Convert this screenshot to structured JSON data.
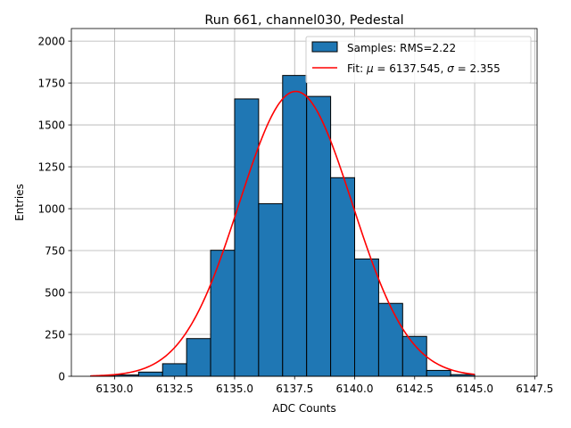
{
  "chart_data": {
    "type": "bar",
    "title": "Run 661, channel030, Pedestal",
    "xlabel": "ADC Counts",
    "ylabel": "Entries",
    "xlim": [
      6128.2,
      6147.6
    ],
    "ylim": [
      0,
      2075
    ],
    "grid": true,
    "legend_position": "top-right",
    "x_ticks": [
      6130.0,
      6132.5,
      6135.0,
      6137.5,
      6140.0,
      6142.5,
      6145.0,
      6147.5
    ],
    "x_tick_labels": [
      "6130.0",
      "6132.5",
      "6135.0",
      "6137.5",
      "6140.0",
      "6142.5",
      "6145.0",
      "6147.5"
    ],
    "y_ticks": [
      0,
      250,
      500,
      750,
      1000,
      1250,
      1500,
      1750,
      2000
    ],
    "y_tick_labels": [
      "0",
      "250",
      "500",
      "750",
      "1000",
      "1250",
      "1500",
      "1750",
      "2000"
    ],
    "series": [
      {
        "name": "Samples: RMS=2.22",
        "kind": "histogram",
        "color": "#1f77b4",
        "edgecolor": "#000000",
        "bin_edges": [
          6129,
          6130,
          6131,
          6132,
          6133,
          6134,
          6135,
          6136,
          6137,
          6138,
          6139,
          6140,
          6141,
          6142,
          6143,
          6144,
          6145,
          6146
        ],
        "values": [
          2,
          8,
          25,
          75,
          225,
          752,
          1655,
          1030,
          1795,
          1670,
          1185,
          700,
          435,
          238,
          35,
          10,
          0
        ]
      },
      {
        "name": "Fit: μ = 6137.545, σ = 2.355",
        "kind": "gaussian",
        "color": "#ff0000",
        "mu": 6137.545,
        "sigma": 2.355,
        "amplitude": 1700,
        "x_range": [
          6129,
          6145
        ]
      }
    ],
    "legend": {
      "samples_label": "Samples: RMS=2.22",
      "fit_label_prefix": "Fit: ",
      "mu_symbol": "μ",
      "mu_value": " = 6137.545, ",
      "sigma_symbol": "σ",
      "sigma_value": " = 2.355"
    }
  }
}
